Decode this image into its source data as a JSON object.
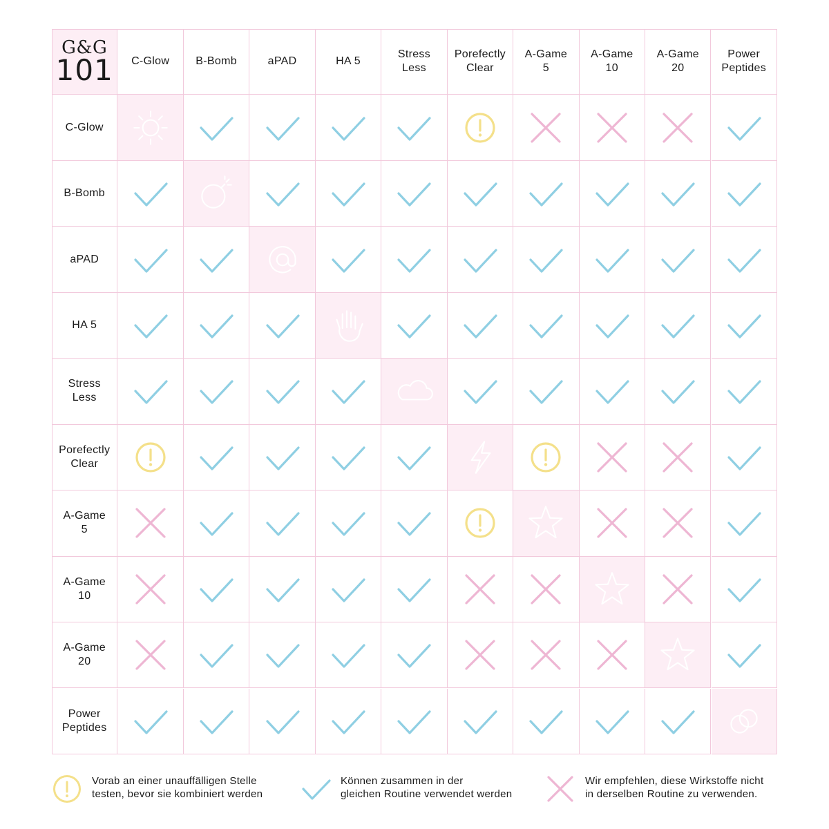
{
  "logo": {
    "line1": "G&G",
    "line2": "101"
  },
  "products": [
    "C-Glow",
    "B-Bomb",
    "aPAD",
    "HA 5",
    "Stress\nLess",
    "Porefectly\nClear",
    "A-Game\n5",
    "A-Game\n10",
    "A-Game\n20",
    "Power\nPeptides"
  ],
  "diagonal_icons": [
    "sun-icon",
    "bomb-icon",
    "at-sign-icon",
    "hand-icon",
    "cloud-icon",
    "lightning-icon",
    "star-icon",
    "star-icon",
    "star-icon",
    "link-icon"
  ],
  "matrix": [
    [
      "self",
      "check",
      "check",
      "check",
      "check",
      "warn",
      "cross",
      "cross",
      "cross",
      "check"
    ],
    [
      "check",
      "self",
      "check",
      "check",
      "check",
      "check",
      "check",
      "check",
      "check",
      "check"
    ],
    [
      "check",
      "check",
      "self",
      "check",
      "check",
      "check",
      "check",
      "check",
      "check",
      "check"
    ],
    [
      "check",
      "check",
      "check",
      "self",
      "check",
      "check",
      "check",
      "check",
      "check",
      "check"
    ],
    [
      "check",
      "check",
      "check",
      "check",
      "self",
      "check",
      "check",
      "check",
      "check",
      "check"
    ],
    [
      "warn",
      "check",
      "check",
      "check",
      "check",
      "self",
      "warn",
      "cross",
      "cross",
      "check"
    ],
    [
      "cross",
      "check",
      "check",
      "check",
      "check",
      "warn",
      "self",
      "cross",
      "cross",
      "check"
    ],
    [
      "cross",
      "check",
      "check",
      "check",
      "check",
      "cross",
      "cross",
      "self",
      "cross",
      "check"
    ],
    [
      "cross",
      "check",
      "check",
      "check",
      "check",
      "cross",
      "cross",
      "cross",
      "self",
      "check"
    ],
    [
      "check",
      "check",
      "check",
      "check",
      "check",
      "check",
      "check",
      "check",
      "check",
      "self"
    ]
  ],
  "legend": {
    "warn": "Vorab an einer unauffälligen Stelle\ntesten, bevor sie kombiniert werden",
    "check": "Können zusammen in der\ngleichen Routine verwendet werden",
    "cross": "Wir empfehlen, diese Wirkstoffe nicht\nin derselben Routine zu verwenden."
  },
  "colors": {
    "check": "#8fcfe3",
    "cross": "#eeb6d3",
    "warn": "#f4e08a",
    "grid": "#f2c9dc",
    "diagonal_bg": "#fdeef5",
    "diagonal_icon": "#ffffff"
  }
}
